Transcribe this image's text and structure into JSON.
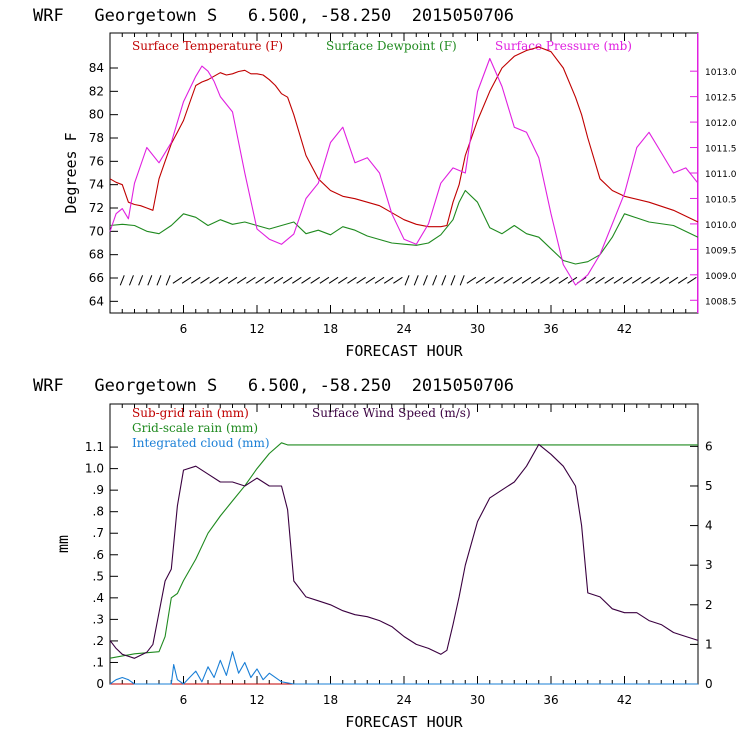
{
  "colors": {
    "temperature": "#c00000",
    "dewpoint": "#1f8a1f",
    "pressure": "#e020e0",
    "wind_barbs": "#000000",
    "subgrid_rain": "#c00000",
    "gridscale_rain": "#1f8a1f",
    "cloud": "#1a7fd6",
    "wind_speed": "#3a0040",
    "frame": "#000000"
  },
  "chart_data": [
    {
      "type": "line",
      "title": "WRF   Georgetown S   6.500, -58.250  2015050706",
      "xlabel": "FORECAST HOUR",
      "ylabel": "Degrees F",
      "x_ticks": [
        6,
        12,
        18,
        24,
        30,
        36,
        42
      ],
      "xlim": [
        0,
        48
      ],
      "ylim": [
        63,
        87
      ],
      "y_ticks": [
        64,
        66,
        68,
        70,
        72,
        74,
        76,
        78,
        80,
        82,
        84
      ],
      "y2lim": [
        1008.25,
        1013.75
      ],
      "y2_ticks": [
        "1008.5",
        "1009.0",
        "1009.5",
        "1010.0",
        "1010.5",
        "1011.0",
        "1011.5",
        "1012.0",
        "1012.5",
        "1013.0"
      ],
      "wind_barbs_label_y": 65.8,
      "series": [
        {
          "name": "Surface Temperature (F)",
          "axis": "left",
          "x": [
            0,
            0.5,
            1,
            1.5,
            2,
            2.5,
            3,
            3.5,
            4,
            4.5,
            5,
            5.5,
            6,
            6.5,
            7,
            7.5,
            8,
            8.5,
            9,
            9.5,
            10,
            10.5,
            11,
            11.5,
            12,
            12.5,
            13,
            13.5,
            14,
            14.5,
            15,
            16,
            17,
            18,
            19,
            20,
            21,
            22,
            23,
            24,
            25,
            26,
            27,
            27.5,
            28,
            28.5,
            29,
            30,
            31,
            32,
            33,
            34,
            35,
            36,
            37,
            38,
            38.5,
            39,
            40,
            41,
            42,
            44,
            46,
            48
          ],
          "y": [
            74.5,
            74.2,
            74.0,
            72.5,
            72.3,
            72.2,
            72.0,
            71.8,
            74.5,
            76.0,
            77.5,
            78.5,
            79.5,
            81.0,
            82.5,
            82.8,
            83.0,
            83.3,
            83.6,
            83.4,
            83.5,
            83.7,
            83.8,
            83.5,
            83.5,
            83.4,
            83.0,
            82.5,
            81.8,
            81.5,
            80.0,
            76.5,
            74.5,
            73.5,
            73.0,
            72.8,
            72.5,
            72.2,
            71.6,
            71.0,
            70.6,
            70.4,
            70.4,
            70.5,
            72.5,
            74.0,
            76.5,
            79.5,
            82.0,
            84.0,
            85.0,
            85.5,
            85.8,
            85.4,
            84.0,
            81.5,
            80.0,
            78.0,
            74.5,
            73.5,
            73.0,
            72.5,
            71.8,
            70.8
          ]
        },
        {
          "name": "Surface Dewpoint (F)",
          "axis": "left",
          "x": [
            0,
            1,
            2,
            3,
            4,
            5,
            5.5,
            6,
            7,
            8,
            9,
            10,
            11,
            12,
            13,
            14,
            15,
            16,
            17,
            18,
            19,
            20,
            21,
            22,
            23,
            24,
            25,
            26,
            27,
            28,
            28.5,
            29,
            30,
            31,
            32,
            33,
            34,
            35,
            36,
            37,
            38,
            39,
            40,
            41,
            42,
            44,
            46,
            48
          ],
          "y": [
            70.5,
            70.6,
            70.5,
            70.0,
            69.8,
            70.5,
            71.0,
            71.5,
            71.2,
            70.5,
            71.0,
            70.6,
            70.8,
            70.5,
            70.2,
            70.5,
            70.8,
            69.8,
            70.1,
            69.7,
            70.4,
            70.1,
            69.6,
            69.3,
            69.0,
            68.9,
            68.8,
            69.0,
            69.7,
            71.0,
            72.5,
            73.5,
            72.5,
            70.3,
            69.8,
            70.5,
            69.8,
            69.5,
            68.5,
            67.5,
            67.2,
            67.4,
            68.0,
            69.5,
            71.5,
            70.8,
            70.5,
            69.5
          ]
        },
        {
          "name": "Surface Pressure (mb)",
          "axis": "right",
          "x": [
            0,
            0.5,
            1,
            1.5,
            2,
            3,
            4,
            5,
            6,
            7,
            7.5,
            8,
            8.5,
            9,
            10,
            11,
            12,
            13,
            14,
            15,
            16,
            17,
            18,
            19,
            20,
            21,
            22,
            23,
            24,
            25,
            26,
            27,
            28,
            29,
            30,
            31,
            32,
            33,
            34,
            35,
            36,
            37,
            38,
            39,
            40,
            41,
            42,
            43,
            44,
            45,
            46,
            47,
            48
          ],
          "y": [
            1009.85,
            1010.2,
            1010.3,
            1010.1,
            1010.8,
            1011.5,
            1011.2,
            1011.6,
            1012.4,
            1012.9,
            1013.1,
            1013.0,
            1012.8,
            1012.5,
            1012.2,
            1011.0,
            1009.9,
            1009.7,
            1009.6,
            1009.8,
            1010.5,
            1010.8,
            1011.6,
            1011.9,
            1011.2,
            1011.3,
            1011.0,
            1010.2,
            1009.7,
            1009.6,
            1010.0,
            1010.8,
            1011.1,
            1011.0,
            1012.6,
            1013.25,
            1012.7,
            1011.9,
            1011.8,
            1011.3,
            1010.2,
            1009.2,
            1008.8,
            1009.0,
            1009.4,
            1010.0,
            1010.6,
            1011.5,
            1011.8,
            1011.4,
            1011.0,
            1011.1,
            1010.8
          ]
        }
      ]
    },
    {
      "type": "line",
      "title": "WRF   Georgetown S   6.500, -58.250  2015050706",
      "xlabel": "FORECAST HOUR",
      "ylabel": "mm",
      "x_ticks": [
        6,
        12,
        18,
        24,
        30,
        36,
        42
      ],
      "xlim": [
        0,
        48
      ],
      "ylim": [
        0,
        1.3
      ],
      "y_ticks": [
        "0",
        ".1",
        ".2",
        ".3",
        ".4",
        ".5",
        ".6",
        ".7",
        ".8",
        ".9",
        "1.0",
        "1.1"
      ],
      "y2lim": [
        0,
        7.07
      ],
      "y2_ticks": [
        "0",
        "1",
        "2",
        "3",
        "4",
        "5",
        "6"
      ],
      "series": [
        {
          "name": "Sub-grid rain (mm)",
          "axis": "left",
          "x": [
            0,
            48
          ],
          "y": [
            0,
            0
          ]
        },
        {
          "name": "Grid-scale rain (mm)",
          "axis": "left",
          "x": [
            0,
            2,
            4,
            4.5,
            5,
            5.5,
            6,
            7,
            8,
            9,
            10,
            11,
            12,
            13,
            14,
            14.5,
            48
          ],
          "y": [
            0.12,
            0.14,
            0.15,
            0.22,
            0.4,
            0.42,
            0.48,
            0.58,
            0.7,
            0.78,
            0.85,
            0.92,
            1.0,
            1.07,
            1.12,
            1.11,
            1.11
          ]
        },
        {
          "name": "Integrated cloud (mm)",
          "axis": "left",
          "x": [
            0,
            0.5,
            1,
            1.5,
            2,
            3,
            4,
            5,
            5.2,
            5.5,
            6,
            6.5,
            7,
            7.5,
            8,
            8.5,
            9,
            9.5,
            10,
            10.5,
            11,
            11.5,
            12,
            12.5,
            13,
            14,
            15,
            48
          ],
          "y": [
            0.0,
            0.02,
            0.03,
            0.02,
            0.0,
            0.0,
            0.0,
            0.0,
            0.09,
            0.02,
            0.0,
            0.03,
            0.06,
            0.01,
            0.08,
            0.03,
            0.11,
            0.04,
            0.15,
            0.05,
            0.1,
            0.03,
            0.07,
            0.02,
            0.05,
            0.01,
            0.0,
            0.0
          ]
        },
        {
          "name": "Surface Wind Speed (m/s)",
          "axis": "right",
          "x": [
            0,
            0.5,
            1,
            2,
            3,
            3.5,
            4,
            4.5,
            5,
            5.5,
            6,
            7,
            8,
            9,
            10,
            11,
            12,
            13,
            14,
            14.5,
            15,
            16,
            17,
            18,
            19,
            20,
            21,
            22,
            23,
            24,
            25,
            26,
            27,
            27.5,
            28,
            28.5,
            29,
            30,
            31,
            32,
            33,
            34,
            35,
            36,
            37,
            38,
            38.5,
            39,
            40,
            41,
            42,
            43,
            44,
            45,
            46,
            47,
            48
          ],
          "y": [
            1.1,
            0.9,
            0.75,
            0.65,
            0.8,
            1.0,
            1.8,
            2.6,
            2.9,
            4.5,
            5.4,
            5.5,
            5.3,
            5.1,
            5.1,
            5.0,
            5.2,
            5.0,
            5.0,
            4.4,
            2.6,
            2.2,
            2.1,
            2.0,
            1.85,
            1.75,
            1.7,
            1.6,
            1.45,
            1.2,
            1.0,
            0.9,
            0.75,
            0.85,
            1.5,
            2.2,
            3.0,
            4.1,
            4.7,
            4.9,
            5.1,
            5.5,
            6.05,
            5.8,
            5.5,
            5.0,
            4.0,
            2.3,
            2.2,
            1.9,
            1.8,
            1.8,
            1.6,
            1.5,
            1.3,
            1.2,
            1.1
          ]
        }
      ]
    }
  ]
}
